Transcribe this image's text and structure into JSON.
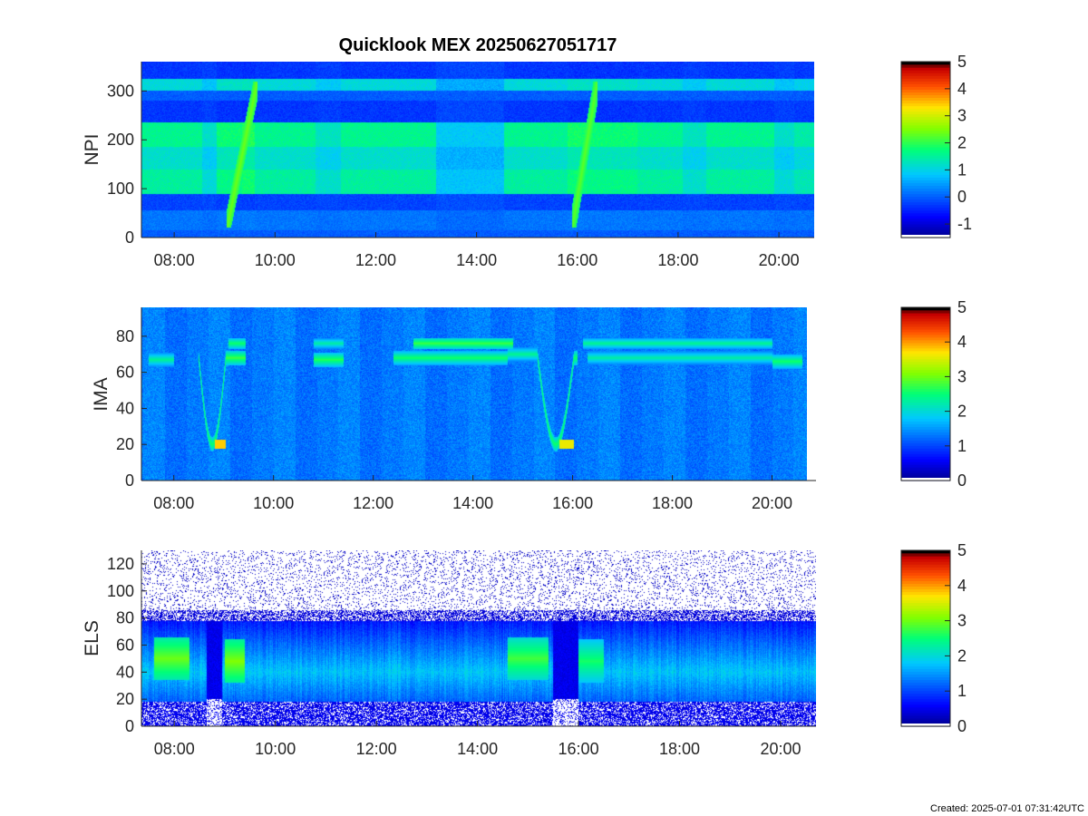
{
  "footer_text": "Created: 2025-07-01 07:31:42UTC",
  "chart_data": [
    {
      "type": "heatmap",
      "title": "Quicklook MEX 20250627051717",
      "ylabel": "NPI",
      "xlabel": "",
      "x_ticks": [
        "08:00",
        "10:00",
        "12:00",
        "14:00",
        "16:00",
        "18:00",
        "20:00"
      ],
      "x_range_hours": [
        7.35,
        20.7
      ],
      "y_ticks": [
        0,
        100,
        200,
        300
      ],
      "ylim": [
        0,
        360
      ],
      "colorbar": {
        "ticks": [
          -1,
          0,
          1,
          2,
          3,
          4,
          5
        ],
        "range": [
          -1.5,
          5
        ]
      },
      "bands": [
        {
          "y": [
            0,
            15
          ],
          "value": 0.0
        },
        {
          "y": [
            15,
            55
          ],
          "value": 0.2
        },
        {
          "y": [
            55,
            90
          ],
          "value": -0.2
        },
        {
          "y": [
            90,
            140
          ],
          "value": 1.5
        },
        {
          "y": [
            140,
            185
          ],
          "value": 1.2
        },
        {
          "y": [
            185,
            235
          ],
          "value": 1.6
        },
        {
          "y": [
            235,
            280
          ],
          "value": -0.3
        },
        {
          "y": [
            280,
            300
          ],
          "value": 0.0
        },
        {
          "y": [
            300,
            325
          ],
          "value": 1.1
        },
        {
          "y": [
            325,
            360
          ],
          "value": -0.3
        }
      ],
      "time_segments": [
        {
          "x": [
            7.35,
            8.55
          ],
          "gain": 1.0
        },
        {
          "x": [
            8.55,
            8.85
          ],
          "gain": 0.75
        },
        {
          "x": [
            8.85,
            9.35
          ],
          "gain": 1.1
        },
        {
          "x": [
            9.35,
            9.6
          ],
          "gain": 1.2
        },
        {
          "x": [
            9.6,
            10.8
          ],
          "gain": 1.0
        },
        {
          "x": [
            10.8,
            11.3
          ],
          "gain": 0.8
        },
        {
          "x": [
            11.3,
            13.2
          ],
          "gain": 1.0
        },
        {
          "x": [
            13.2,
            14.55
          ],
          "gain": 0.55
        },
        {
          "x": [
            14.55,
            15.8
          ],
          "gain": 1.0
        },
        {
          "x": [
            15.8,
            16.2
          ],
          "gain": 1.15
        },
        {
          "x": [
            16.2,
            17.2
          ],
          "gain": 1.1
        },
        {
          "x": [
            17.2,
            18.1
          ],
          "gain": 1.0
        },
        {
          "x": [
            18.1,
            18.55
          ],
          "gain": 0.8
        },
        {
          "x": [
            18.55,
            19.9
          ],
          "gain": 1.0
        },
        {
          "x": [
            19.9,
            20.3
          ],
          "gain": 0.75
        },
        {
          "x": [
            20.3,
            20.7
          ],
          "gain": 0.9
        }
      ],
      "features": [
        {
          "x": [
            9.05,
            9.65
          ],
          "y": [
            20,
            320
          ],
          "value": 2.4
        },
        {
          "x": [
            15.9,
            16.4
          ],
          "y": [
            20,
            320
          ],
          "value": 2.3
        }
      ]
    },
    {
      "type": "heatmap",
      "ylabel": "IMA",
      "xlabel": "",
      "x_ticks": [
        "08:00",
        "10:00",
        "12:00",
        "14:00",
        "16:00",
        "18:00",
        "20:00"
      ],
      "x_range_hours": [
        7.35,
        20.7
      ],
      "y_ticks": [
        0,
        20,
        40,
        60,
        80
      ],
      "ylim": [
        0,
        96
      ],
      "colorbar": {
        "ticks": [
          0,
          1,
          2,
          3,
          4,
          5
        ],
        "range": [
          0,
          5
        ]
      },
      "background_value": 1.25,
      "ion_line_segments": [
        {
          "x": [
            7.5,
            8.0
          ],
          "y": 67,
          "value": 2.4
        },
        {
          "x": [
            9.05,
            9.45
          ],
          "y": 68,
          "value": 2.8
        },
        {
          "x": [
            10.8,
            11.4
          ],
          "y": 67,
          "value": 2.7
        },
        {
          "x": [
            12.4,
            14.7
          ],
          "y": 68,
          "value": 2.6
        },
        {
          "x": [
            14.7,
            15.3
          ],
          "y": 70,
          "value": 2.4
        },
        {
          "x": [
            16.3,
            20.0
          ],
          "y": 68,
          "value": 2.3
        },
        {
          "x": [
            20.0,
            20.6
          ],
          "y": 66,
          "value": 2.6
        }
      ],
      "upper_line_segments": [
        {
          "x": [
            9.1,
            9.45
          ],
          "y": 76,
          "value": 2.6
        },
        {
          "x": [
            10.8,
            11.4
          ],
          "y": 76,
          "value": 2.3
        },
        {
          "x": [
            12.8,
            14.8
          ],
          "y": 76,
          "value": 2.8
        },
        {
          "x": [
            16.2,
            20.0
          ],
          "y": 76,
          "value": 2.4
        }
      ],
      "dips": [
        {
          "x": [
            8.5,
            9.1
          ],
          "y_low": 20,
          "value": 3.8
        },
        {
          "x": [
            15.3,
            16.1
          ],
          "y_low": 20,
          "value": 3.6
        }
      ]
    },
    {
      "type": "heatmap",
      "ylabel": "ELS",
      "xlabel": "",
      "x_ticks": [
        "08:00",
        "10:00",
        "12:00",
        "14:00",
        "16:00",
        "18:00",
        "20:00"
      ],
      "x_range_hours": [
        7.35,
        20.7
      ],
      "y_ticks": [
        0,
        20,
        40,
        60,
        80,
        100,
        120
      ],
      "ylim": [
        0,
        130
      ],
      "colorbar": {
        "ticks": [
          0,
          1,
          2,
          3,
          4,
          5
        ],
        "range": [
          0,
          5
        ]
      },
      "core_value": 1.8,
      "core_center_y": 40,
      "upper_edge_y": 82,
      "hot_spots": [
        {
          "x": [
            7.6,
            8.3
          ],
          "y_center": 50,
          "value": 3.0
        },
        {
          "x": [
            9.0,
            9.4
          ],
          "y_center": 48,
          "value": 3.1
        },
        {
          "x": [
            14.6,
            15.4
          ],
          "y_center": 50,
          "value": 2.8
        },
        {
          "x": [
            16.0,
            16.5
          ],
          "y_center": 48,
          "value": 2.6
        }
      ],
      "gaps": [
        {
          "x": [
            8.65,
            8.95
          ]
        },
        {
          "x": [
            15.5,
            16.0
          ]
        }
      ]
    }
  ]
}
